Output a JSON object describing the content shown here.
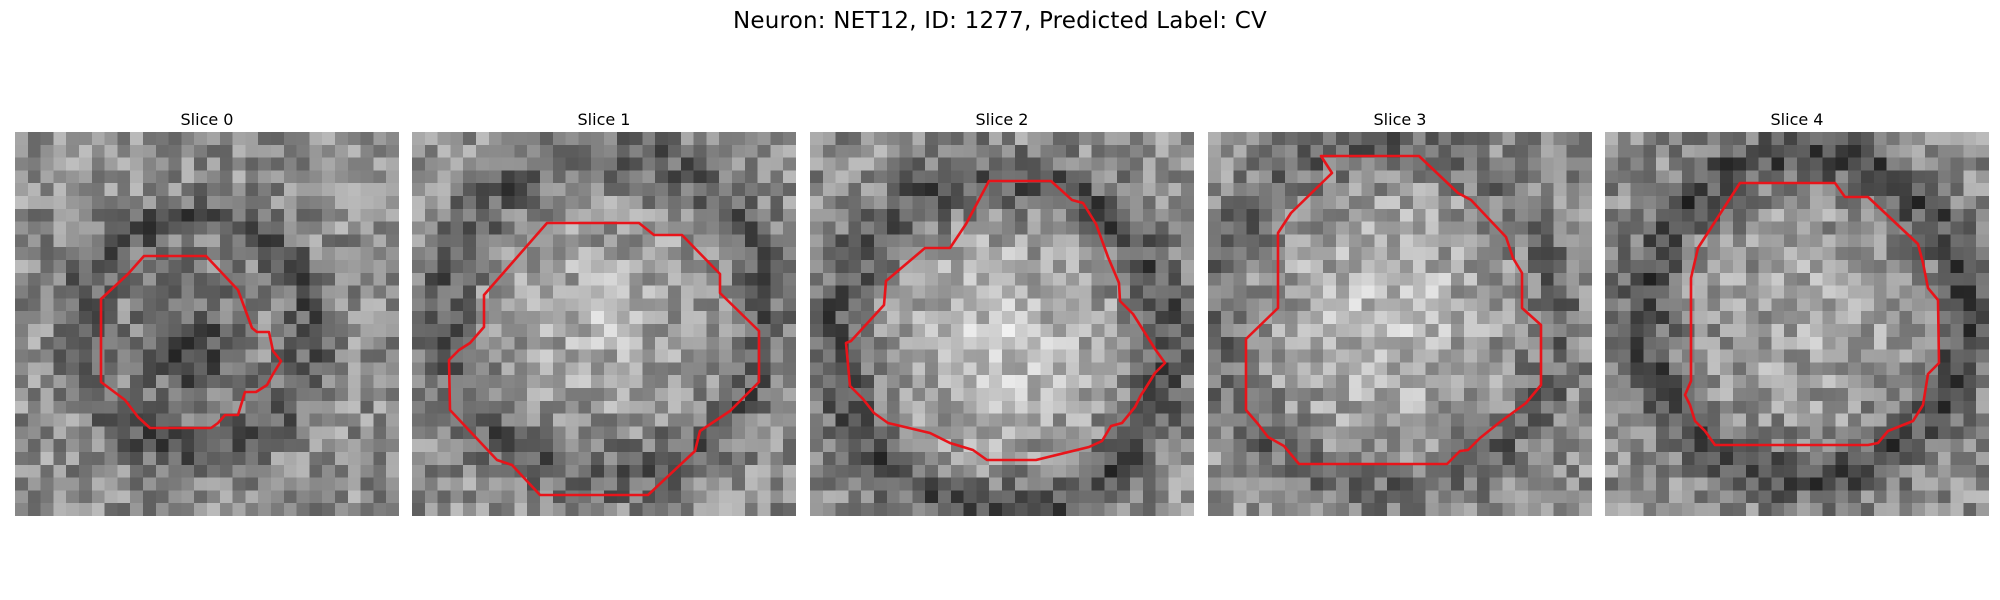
{
  "figure": {
    "suptitle": "Neuron: NET12, ID: 1277, Predicted Label: CV",
    "contour_color": "#e8141a",
    "colormap": "grayscale"
  },
  "panels": [
    {
      "title": "Slice 0"
    },
    {
      "title": "Slice 1"
    },
    {
      "title": "Slice 2"
    },
    {
      "title": "Slice 3"
    },
    {
      "title": "Slice 4"
    }
  ]
}
